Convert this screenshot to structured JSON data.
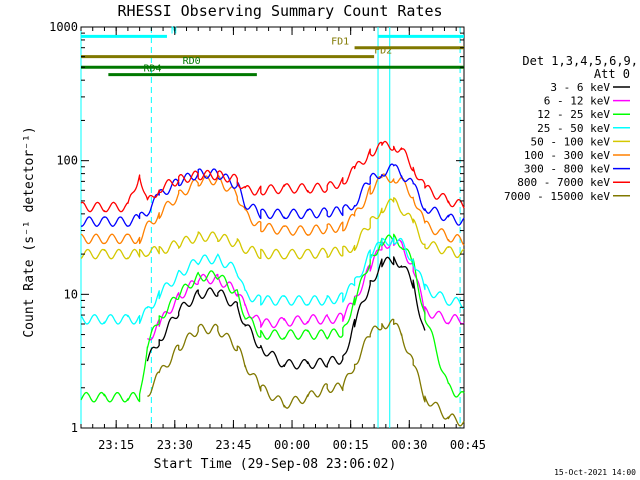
{
  "chart_data": {
    "type": "line",
    "title": "RHESSI Observing Summary Count Rates",
    "xlabel": "Start Time (29-Sep-08 23:06:02)",
    "ylabel": "Count Rate (s⁻¹ detector⁻¹)",
    "y_scale": "log",
    "ylim": [
      1,
      1000
    ],
    "xlim_minutes": [
      0,
      98
    ],
    "y_ticks": [
      {
        "value": 1,
        "label": "1"
      },
      {
        "value": 10,
        "label": "10"
      },
      {
        "value": 100,
        "label": "100"
      },
      {
        "value": 1000,
        "label": "1000"
      }
    ],
    "x_ticks": [
      {
        "minute": 9,
        "label": "23:15"
      },
      {
        "minute": 24,
        "label": "23:30"
      },
      {
        "minute": 39,
        "label": "23:45"
      },
      {
        "minute": 54,
        "label": "00:00"
      },
      {
        "minute": 69,
        "label": "00:15"
      },
      {
        "minute": 84,
        "label": "00:30"
      },
      {
        "minute": 99,
        "label": "00:45"
      }
    ],
    "detector_info": {
      "line1": "Det 1,3,4,5,6,9,",
      "line2": "Att 0"
    },
    "footer_date": "15-Oct-2021 14:00",
    "legend_position": "right",
    "x_minutes": [
      0,
      6,
      12,
      15,
      17,
      20,
      25,
      30,
      35,
      40,
      42,
      46,
      52,
      58,
      63,
      67,
      70,
      74,
      77,
      80,
      82,
      85,
      88,
      94,
      98
    ],
    "series": [
      {
        "name": "3 - 6 keV",
        "color": "#000000",
        "values": [
          null,
          null,
          null,
          null,
          3.2,
          4.5,
          7.5,
          10,
          10.5,
          8,
          6,
          4,
          3,
          3,
          3.1,
          3.3,
          6,
          12,
          17,
          18,
          17,
          12,
          5,
          null,
          null
        ]
      },
      {
        "name": "6 - 12 keV",
        "color": "#ff00ff",
        "values": [
          null,
          null,
          null,
          null,
          4.5,
          6,
          9.5,
          13,
          13,
          10.5,
          8,
          6,
          6.2,
          6.5,
          6.5,
          6.7,
          9,
          16,
          23,
          25,
          23,
          16,
          7.5,
          6.5,
          6.5
        ]
      },
      {
        "name": "12 - 25 keV",
        "color": "#00ff00",
        "values": [
          1.7,
          1.7,
          1.7,
          1.7,
          4.2,
          6.5,
          10,
          13.5,
          14,
          10,
          7,
          5,
          5,
          5,
          5,
          5.2,
          9,
          18,
          25,
          26,
          24,
          17,
          7,
          2,
          1.7
        ]
      },
      {
        "name": "25 - 50 keV",
        "color": "#00ffff",
        "values": [
          6.5,
          6.5,
          6.5,
          6.5,
          7.5,
          10,
          14,
          18,
          18.5,
          15,
          10,
          9,
          9,
          9,
          9,
          9.5,
          12,
          20,
          24,
          26,
          24,
          18,
          11,
          9,
          8.5
        ]
      },
      {
        "name": "50 - 100 keV",
        "color": "#d4c800",
        "values": [
          20,
          20,
          20,
          20,
          21,
          21,
          24,
          27,
          27,
          24,
          22,
          20,
          20,
          20,
          20.5,
          21,
          23,
          34,
          44,
          49,
          44,
          34,
          24,
          21,
          20
        ]
      },
      {
        "name": "100 - 300 keV",
        "color": "#ff8000",
        "values": [
          26,
          26,
          26,
          26,
          32,
          40,
          55,
          70,
          72,
          55,
          40,
          32,
          30,
          30,
          31,
          32,
          38,
          60,
          73,
          75,
          70,
          55,
          33,
          27,
          25
        ]
      },
      {
        "name": "300 - 800 keV",
        "color": "#0000ff",
        "values": [
          35,
          35,
          35,
          37,
          42,
          55,
          70,
          80,
          80,
          65,
          48,
          40,
          40,
          40,
          41,
          42,
          48,
          72,
          82,
          88,
          80,
          65,
          45,
          37,
          35
        ]
      },
      {
        "name": "800 - 7000 keV",
        "color": "#ff0000",
        "values": [
          45,
          45,
          45,
          80,
          48,
          62,
          72,
          78,
          78,
          72,
          60,
          60,
          62,
          62,
          63,
          70,
          85,
          115,
          128,
          130,
          120,
          90,
          62,
          50,
          46
        ]
      },
      {
        "name": "7000 - 15000 keV",
        "color": "#807800",
        "values": [
          null,
          null,
          null,
          null,
          1.8,
          2.5,
          4,
          5.5,
          5.5,
          4,
          3,
          2,
          1.5,
          1.7,
          2,
          2,
          3,
          5,
          6,
          6,
          5,
          3,
          1.7,
          1.2,
          1.1
        ]
      }
    ],
    "annotations": [
      {
        "label": "N",
        "color": "#00ffff",
        "level": 850,
        "start": 0,
        "end": 22,
        "label_at": 23
      },
      {
        "label": "",
        "color": "#00ffff",
        "level": 850,
        "start": 76,
        "end": 98
      },
      {
        "label": "FD1",
        "color": "#807800",
        "level": 700,
        "start": 70,
        "end": 98,
        "label_at": 64
      },
      {
        "label": "FD2",
        "color": "#807800",
        "level": 600,
        "start": 0,
        "end": 75,
        "label_at": 75
      },
      {
        "label": "RD0",
        "color": "#007800",
        "level": 500,
        "start": 0,
        "end": 98,
        "label_at": 26
      },
      {
        "label": "RD4",
        "color": "#007800",
        "level": 440,
        "start": 7,
        "end": 45,
        "label_at": 16
      }
    ],
    "vlines": [
      {
        "minute": 0,
        "style": "solid",
        "color": "#00ffff"
      },
      {
        "minute": 18,
        "style": "dashed",
        "color": "#00ffff"
      },
      {
        "minute": 76,
        "style": "solid",
        "color": "#00ffff"
      },
      {
        "minute": 79,
        "style": "solid",
        "color": "#00ffff"
      },
      {
        "minute": 97,
        "style": "dashed",
        "color": "#00ffff"
      }
    ]
  }
}
